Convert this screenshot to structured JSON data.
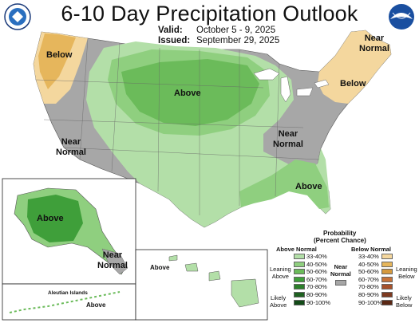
{
  "title": "6-10 Day Precipitation Outlook",
  "valid": {
    "label": "Valid:",
    "value": "October 5 - 9, 2025"
  },
  "issued": {
    "label": "Issued:",
    "value": "September 29, 2025"
  },
  "logos": {
    "left": "doc-seal-icon",
    "right": "noaa-logo-icon"
  },
  "region_labels": {
    "below_west": "Below",
    "above_central": "Above",
    "near_normal_west": "Near\nNormal",
    "near_normal_east": "Near\nNormal",
    "near_normal_ne": "Near\nNormal",
    "below_ne": "Below",
    "above_se": "Above",
    "alaska_above": "Above",
    "alaska_near_normal": "Near\nNormal",
    "hawaii_above": "Above",
    "aleutian_title": "Aleutian Islands",
    "aleutian_above": "Above"
  },
  "legend": {
    "title": "Probability",
    "subtitle": "(Percent Chance)",
    "above_header": "Above Normal",
    "below_header": "Below Normal",
    "near_header": "Near\nNormal",
    "leaning_above": "Leaning\nAbove",
    "likely_above": "Likely\nAbove",
    "leaning_below": "Leaning\nBelow",
    "likely_below": "Likely\nBelow",
    "ranges": [
      "33-40%",
      "40-50%",
      "50-60%",
      "60-70%",
      "70-80%",
      "80-90%",
      "90-100%"
    ],
    "above_colors": [
      "#b3dfa8",
      "#8fcf7f",
      "#6bbb5a",
      "#3f9f3a",
      "#2c7f2a",
      "#1e6120",
      "#124a17"
    ],
    "below_colors": [
      "#f4d79e",
      "#e6b65c",
      "#d59a3f",
      "#c7733a",
      "#a6512b",
      "#7e3a20",
      "#5a2714"
    ],
    "near_color": "#a6a6a6"
  }
}
